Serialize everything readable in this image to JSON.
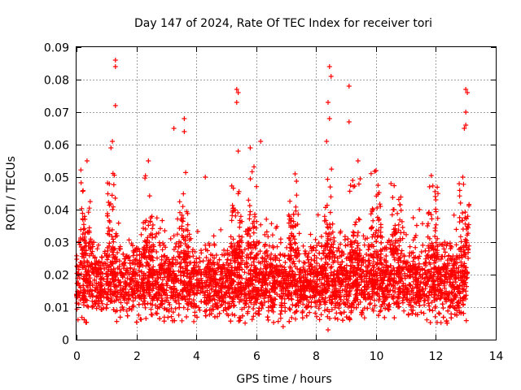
{
  "chart_data": {
    "type": "scatter",
    "title": "Day 147 of 2024, Rate Of TEC Index for receiver tori",
    "xlabel": "GPS time / hours",
    "ylabel": "ROTI / TECUs",
    "xlim": [
      0,
      14
    ],
    "ylim": [
      0,
      0.09
    ],
    "x_ticks": [
      0,
      2,
      4,
      6,
      8,
      10,
      12,
      14
    ],
    "y_ticks": [
      0,
      0.01,
      0.02,
      0.03,
      0.04,
      0.05,
      0.06,
      0.07,
      0.08,
      0.09
    ],
    "x_tick_labels": [
      "0",
      "2",
      "4",
      "6",
      "8",
      "10",
      "12",
      "14"
    ],
    "y_tick_labels": [
      "0",
      "0.01",
      "0.02",
      "0.03",
      "0.04",
      "0.05",
      "0.06",
      "0.07",
      "0.08",
      "0.09"
    ],
    "grid": true,
    "marker": "plus",
    "marker_color": "#ff0000",
    "series": [
      {
        "name": "ROTI",
        "x_range": [
          0,
          13.05
        ],
        "baseline_range": [
          0.005,
          0.025
        ],
        "notable_points": [
          {
            "x": 1.3,
            "y": 0.086
          },
          {
            "x": 1.3,
            "y": 0.084
          },
          {
            "x": 1.3,
            "y": 0.072
          },
          {
            "x": 3.25,
            "y": 0.065
          },
          {
            "x": 3.6,
            "y": 0.068
          },
          {
            "x": 3.6,
            "y": 0.064
          },
          {
            "x": 5.35,
            "y": 0.077
          },
          {
            "x": 5.35,
            "y": 0.073
          },
          {
            "x": 5.4,
            "y": 0.076
          },
          {
            "x": 5.4,
            "y": 0.058
          },
          {
            "x": 5.8,
            "y": 0.059
          },
          {
            "x": 6.15,
            "y": 0.061
          },
          {
            "x": 8.45,
            "y": 0.084
          },
          {
            "x": 8.5,
            "y": 0.081
          },
          {
            "x": 8.4,
            "y": 0.073
          },
          {
            "x": 8.45,
            "y": 0.068
          },
          {
            "x": 8.35,
            "y": 0.061
          },
          {
            "x": 9.1,
            "y": 0.078
          },
          {
            "x": 9.1,
            "y": 0.067
          },
          {
            "x": 13.0,
            "y": 0.077
          },
          {
            "x": 13.05,
            "y": 0.076
          },
          {
            "x": 13.0,
            "y": 0.07
          },
          {
            "x": 13.0,
            "y": 0.066
          },
          {
            "x": 12.95,
            "y": 0.065
          },
          {
            "x": 0.35,
            "y": 0.055
          },
          {
            "x": 1.15,
            "y": 0.059
          },
          {
            "x": 1.2,
            "y": 0.061
          },
          {
            "x": 2.4,
            "y": 0.055
          },
          {
            "x": 4.3,
            "y": 0.05
          },
          {
            "x": 7.3,
            "y": 0.051
          },
          {
            "x": 9.4,
            "y": 0.055
          },
          {
            "x": 10.0,
            "y": 0.052
          },
          {
            "x": 10.5,
            "y": 0.048
          },
          {
            "x": 11.45,
            "y": 0.04
          },
          {
            "x": 12.0,
            "y": 0.043
          },
          {
            "x": 12.9,
            "y": 0.05
          },
          {
            "x": 8.4,
            "y": 0.003
          },
          {
            "x": 6.9,
            "y": 0.004
          }
        ],
        "burst_hours": [
          0.3,
          1.2,
          2.4,
          3.6,
          5.35,
          5.85,
          7.25,
          8.45,
          9.3,
          10.0,
          10.7,
          11.9,
          12.95
        ]
      }
    ]
  }
}
